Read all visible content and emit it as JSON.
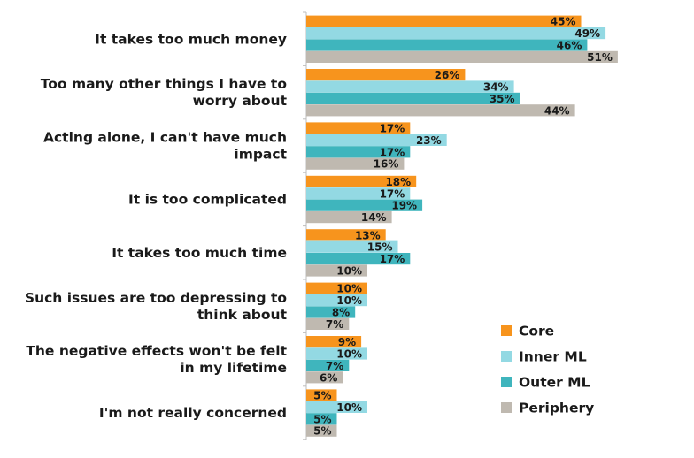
{
  "chart_data": {
    "type": "bar",
    "orientation": "horizontal",
    "title": "",
    "xlabel": "",
    "ylabel": "",
    "xlim": [
      0,
      55
    ],
    "grid": false,
    "legend_position": "bottom-right",
    "value_suffix": "%",
    "categories": [
      [
        "It takes too much money"
      ],
      [
        "Too many other things I have to",
        "worry about"
      ],
      [
        "Acting alone, I can't have much",
        "impact"
      ],
      [
        "It is too complicated"
      ],
      [
        "It takes too much time"
      ],
      [
        "Such issues are too depressing to",
        "think about"
      ],
      [
        "The negative effects won't be felt",
        "in my lifetime"
      ],
      [
        "I'm not really concerned"
      ]
    ],
    "series": [
      {
        "name": "Core",
        "color": "#f7941d",
        "values": [
          45,
          26,
          17,
          18,
          13,
          10,
          9,
          5
        ]
      },
      {
        "name": "Inner ML",
        "color": "#93d9e3",
        "values": [
          49,
          34,
          23,
          17,
          15,
          10,
          10,
          10
        ]
      },
      {
        "name": "Outer ML",
        "color": "#3fb5bd",
        "values": [
          46,
          35,
          17,
          19,
          17,
          8,
          7,
          5
        ]
      },
      {
        "name": "Periphery",
        "color": "#bfb9b0",
        "values": [
          51,
          44,
          16,
          14,
          10,
          7,
          6,
          5
        ]
      }
    ]
  }
}
